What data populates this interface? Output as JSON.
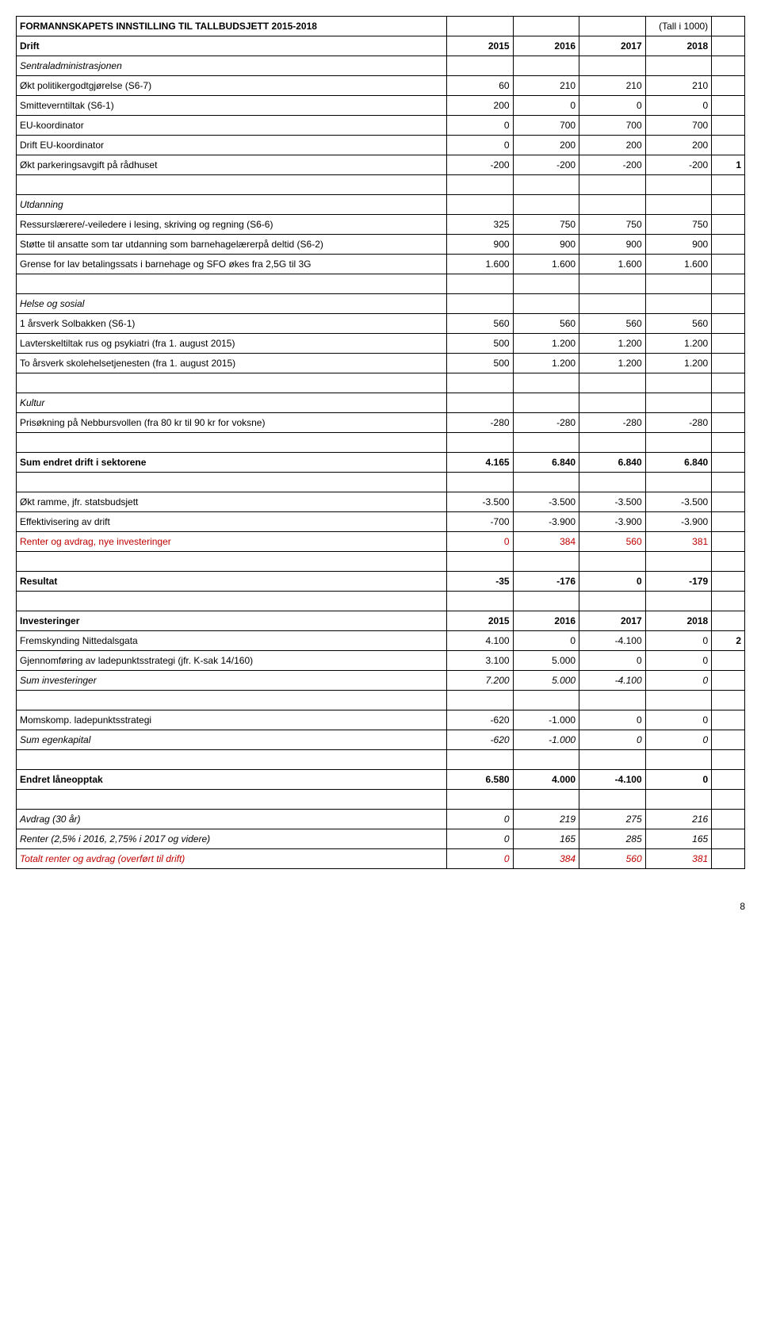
{
  "header": {
    "title": "FORMANNSKAPETS INNSTILLING TIL TALLBUDSJETT 2015-2018",
    "unit": "(Tall i 1000)"
  },
  "rows": [
    {
      "label": "Drift",
      "bold": true,
      "c1": "2015",
      "c2": "2016",
      "c3": "2017",
      "c4": "2018",
      "extra": "",
      "hbold": true
    },
    {
      "label": "Sentraladministrasjonen",
      "italic": true,
      "c1": "",
      "c2": "",
      "c3": "",
      "c4": "",
      "extra": ""
    },
    {
      "label": "Økt politikergodtgjørelse (S6-7)",
      "c1": "60",
      "c2": "210",
      "c3": "210",
      "c4": "210",
      "extra": ""
    },
    {
      "label": "Smitteverntiltak (S6-1)",
      "c1": "200",
      "c2": "0",
      "c3": "0",
      "c4": "0",
      "extra": ""
    },
    {
      "label": "EU-koordinator",
      "c1": "0",
      "c2": "700",
      "c3": "700",
      "c4": "700",
      "extra": ""
    },
    {
      "label": "Drift EU-koordinator",
      "c1": "0",
      "c2": "200",
      "c3": "200",
      "c4": "200",
      "extra": ""
    },
    {
      "label": "Økt parkeringsavgift på rådhuset",
      "c1": "-200",
      "c2": "-200",
      "c3": "-200",
      "c4": "-200",
      "extra": "1",
      "extrabold": true
    },
    {
      "label": "",
      "c1": "",
      "c2": "",
      "c3": "",
      "c4": "",
      "extra": ""
    },
    {
      "label": "Utdanning",
      "italic": true,
      "c1": "",
      "c2": "",
      "c3": "",
      "c4": "",
      "extra": ""
    },
    {
      "label": "Ressurslærere/-veiledere i lesing, skriving og regning (S6-6)",
      "c1": "325",
      "c2": "750",
      "c3": "750",
      "c4": "750",
      "extra": ""
    },
    {
      "label": "Støtte til ansatte som tar utdanning som barnehagelærerpå deltid (S6-2)",
      "c1": "900",
      "c2": "900",
      "c3": "900",
      "c4": "900",
      "extra": ""
    },
    {
      "label": "Grense for lav betalingssats i barnehage og SFO økes fra 2,5G til 3G",
      "c1": "1.600",
      "c2": "1.600",
      "c3": "1.600",
      "c4": "1.600",
      "extra": ""
    },
    {
      "label": "",
      "c1": "",
      "c2": "",
      "c3": "",
      "c4": "",
      "extra": ""
    },
    {
      "label": "Helse og sosial",
      "italic": true,
      "c1": "",
      "c2": "",
      "c3": "",
      "c4": "",
      "extra": ""
    },
    {
      "label": "1 årsverk Solbakken (S6-1)",
      "c1": "560",
      "c2": "560",
      "c3": "560",
      "c4": "560",
      "extra": ""
    },
    {
      "label": "Lavterskeltiltak rus og psykiatri (fra 1. august 2015)",
      "c1": "500",
      "c2": "1.200",
      "c3": "1.200",
      "c4": "1.200",
      "extra": ""
    },
    {
      "label": "To årsverk skolehelsetjenesten (fra 1. august 2015)",
      "c1": "500",
      "c2": "1.200",
      "c3": "1.200",
      "c4": "1.200",
      "extra": ""
    },
    {
      "label": "",
      "c1": "",
      "c2": "",
      "c3": "",
      "c4": "",
      "extra": ""
    },
    {
      "label": "Kultur",
      "italic": true,
      "c1": "",
      "c2": "",
      "c3": "",
      "c4": "",
      "extra": ""
    },
    {
      "label": "Prisøkning på Nebbursvollen (fra 80 kr til 90 kr for voksne)",
      "c1": "-280",
      "c2": "-280",
      "c3": "-280",
      "c4": "-280",
      "extra": ""
    },
    {
      "label": "",
      "c1": "",
      "c2": "",
      "c3": "",
      "c4": "",
      "extra": ""
    },
    {
      "label": "Sum endret drift i sektorene",
      "bold": true,
      "c1": "4.165",
      "c2": "6.840",
      "c3": "6.840",
      "c4": "6.840",
      "extra": "",
      "hbold": true
    },
    {
      "label": "",
      "c1": "",
      "c2": "",
      "c3": "",
      "c4": "",
      "extra": ""
    },
    {
      "label": "Økt ramme, jfr. statsbudsjett",
      "c1": "-3.500",
      "c2": "-3.500",
      "c3": "-3.500",
      "c4": "-3.500",
      "extra": ""
    },
    {
      "label": "Effektivisering av drift",
      "c1": "-700",
      "c2": "-3.900",
      "c3": "-3.900",
      "c4": "-3.900",
      "extra": ""
    },
    {
      "label": "Renter og avdrag, nye investeringer",
      "red": true,
      "c1": "0",
      "c2": "384",
      "c3": "560",
      "c4": "381",
      "extra": ""
    },
    {
      "label": "",
      "c1": "",
      "c2": "",
      "c3": "",
      "c4": "",
      "extra": ""
    },
    {
      "label": "Resultat",
      "bold": true,
      "c1": "-35",
      "c2": "-176",
      "c3": "0",
      "c4": "-179",
      "extra": "",
      "hbold": true
    },
    {
      "label": "",
      "c1": "",
      "c2": "",
      "c3": "",
      "c4": "",
      "extra": ""
    },
    {
      "label": "Investeringer",
      "bold": true,
      "c1": "2015",
      "c2": "2016",
      "c3": "2017",
      "c4": "2018",
      "extra": "",
      "hbold": true
    },
    {
      "label": "Fremskynding Nittedalsgata",
      "c1": "4.100",
      "c2": "0",
      "c3": "-4.100",
      "c4": "0",
      "extra": "2",
      "extrabold": true
    },
    {
      "label": "Gjennomføring av ladepunktsstrategi (jfr. K-sak 14/160)",
      "c1": "3.100",
      "c2": "5.000",
      "c3": "0",
      "c4": "0",
      "extra": ""
    },
    {
      "label": "Sum investeringer",
      "italic": true,
      "c1": "7.200",
      "c2": "5.000",
      "c3": "-4.100",
      "c4": "0",
      "extra": "",
      "hitalic": true
    },
    {
      "label": "",
      "c1": "",
      "c2": "",
      "c3": "",
      "c4": "",
      "extra": ""
    },
    {
      "label": "Momskomp. ladepunktsstrategi",
      "c1": "-620",
      "c2": "-1.000",
      "c3": "0",
      "c4": "0",
      "extra": ""
    },
    {
      "label": "Sum egenkapital",
      "italic": true,
      "c1": "-620",
      "c2": "-1.000",
      "c3": "0",
      "c4": "0",
      "extra": "",
      "hitalic": true
    },
    {
      "label": "",
      "c1": "",
      "c2": "",
      "c3": "",
      "c4": "",
      "extra": ""
    },
    {
      "label": "Endret låneopptak",
      "bold": true,
      "c1": "6.580",
      "c2": "4.000",
      "c3": "-4.100",
      "c4": "0",
      "extra": "",
      "hbold": true
    },
    {
      "label": "",
      "c1": "",
      "c2": "",
      "c3": "",
      "c4": "",
      "extra": ""
    },
    {
      "label": "Avdrag (30 år)",
      "italic": true,
      "c1": "0",
      "c2": "219",
      "c3": "275",
      "c4": "216",
      "extra": "",
      "hitalic": true
    },
    {
      "label": "Renter (2,5% i 2016, 2,75% i 2017 og videre)",
      "italic": true,
      "c1": "0",
      "c2": "165",
      "c3": "285",
      "c4": "165",
      "extra": "",
      "hitalic": true
    },
    {
      "label": "Totalt renter og avdrag (overført til drift)",
      "italic": true,
      "red": true,
      "c1": "0",
      "c2": "384",
      "c3": "560",
      "c4": "381",
      "extra": "",
      "hitalic": true
    }
  ],
  "pageNumber": "8"
}
